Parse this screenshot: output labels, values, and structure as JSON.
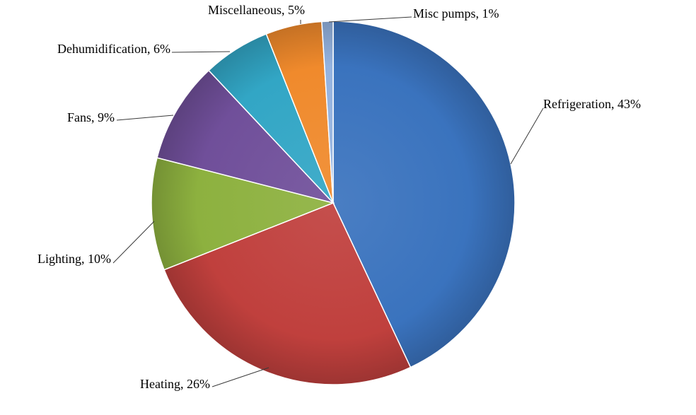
{
  "chart_data": {
    "type": "pie",
    "title": "",
    "legend": "none",
    "slices": [
      {
        "label": "Refrigeration, 43%",
        "name": "Refrigeration",
        "value": 43,
        "color": "#3A73BE"
      },
      {
        "label": "Heating, 26%",
        "name": "Heating",
        "value": 26,
        "color": "#C0403D"
      },
      {
        "label": "Lighting, 10%",
        "name": "Lighting",
        "value": 10,
        "color": "#8DB13F"
      },
      {
        "label": "Fans, 9%",
        "name": "Fans",
        "value": 9,
        "color": "#704F9A"
      },
      {
        "label": "Dehumidification, 6%",
        "name": "Dehumidification",
        "value": 6,
        "color": "#32A6C5"
      },
      {
        "label": "Miscellaneous, 5%",
        "name": "Miscellaneous",
        "value": 5,
        "color": "#F08A2C"
      },
      {
        "label": "Misc pumps, 1%",
        "name": "Misc pumps",
        "value": 1,
        "color": "#94B3E0"
      }
    ]
  }
}
